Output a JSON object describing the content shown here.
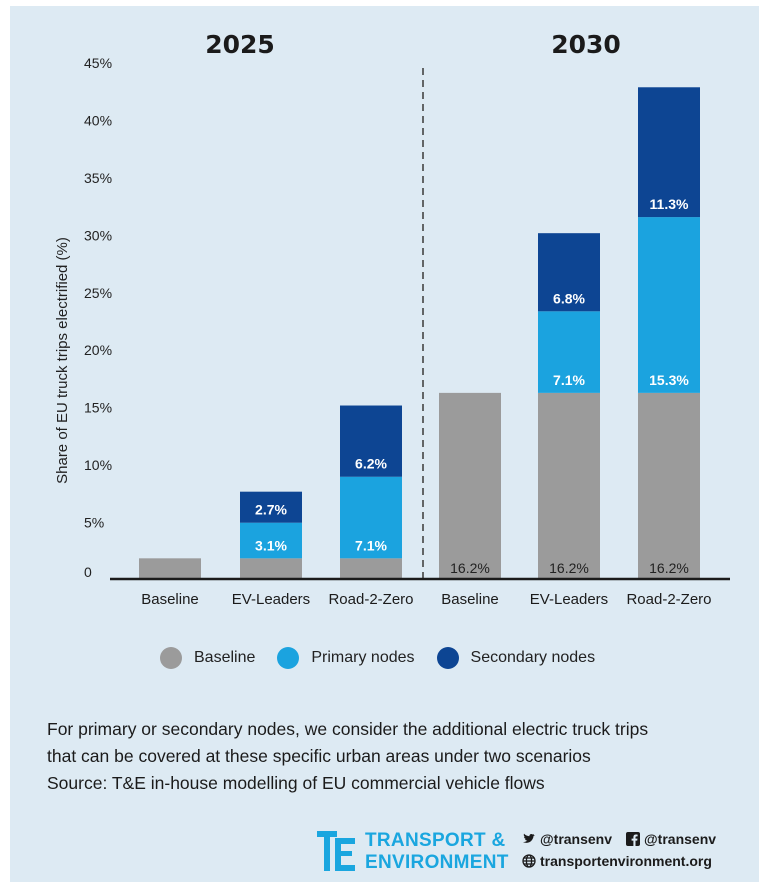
{
  "chart_data": {
    "type": "bar",
    "stacked": true,
    "groups": [
      {
        "title": "2025",
        "categories": [
          "Baseline",
          "EV-Leaders",
          "Road-2-Zero"
        ]
      },
      {
        "title": "2030",
        "categories": [
          "Baseline",
          "EV-Leaders",
          "Road-2-Zero"
        ]
      }
    ],
    "categories": [
      "Baseline",
      "EV-Leaders",
      "Road-2-Zero",
      "Baseline",
      "EV-Leaders",
      "Road-2-Zero"
    ],
    "series": [
      {
        "name": "Baseline",
        "color": "#9b9b9b",
        "values": [
          1.8,
          1.8,
          1.8,
          16.2,
          16.2,
          16.2
        ],
        "labels": [
          "",
          "",
          "",
          "16.2%",
          "16.2%",
          "16.2%"
        ]
      },
      {
        "name": "Primary nodes",
        "color": "#1ba3df",
        "values": [
          0,
          3.1,
          7.1,
          0,
          7.1,
          15.3
        ],
        "labels": [
          "",
          "3.1%",
          "7.1%",
          "",
          "7.1%",
          "15.3%"
        ]
      },
      {
        "name": "Secondary nodes",
        "color": "#0d4593",
        "values": [
          0,
          2.7,
          6.2,
          0,
          6.8,
          11.3
        ],
        "labels": [
          "",
          "2.7%",
          "6.2%",
          "",
          "6.8%",
          "11.3%"
        ]
      }
    ],
    "ylabel": "Share of EU truck trips electrified (%)",
    "xlabel": "",
    "ylim": [
      0,
      45
    ],
    "yticks": [
      0,
      5,
      10,
      15,
      20,
      25,
      30,
      35,
      40,
      45
    ],
    "ytick_labels": [
      "0",
      "5%",
      "10%",
      "15%",
      "20%",
      "25%",
      "30%",
      "35%",
      "40%",
      "45%"
    ],
    "grid": false,
    "legend_position": "bottom"
  },
  "legend": [
    {
      "label": "Baseline",
      "color": "#9b9b9b"
    },
    {
      "label": "Primary nodes",
      "color": "#1ba3df"
    },
    {
      "label": "Secondary nodes",
      "color": "#0d4593"
    }
  ],
  "caption": {
    "line1": "For primary or secondary nodes, we consider the additional electric truck trips",
    "line2": "that can be covered at these specific urban areas under two scenarios",
    "line3": "Source: T&E in-house modelling of EU commercial vehicle flows"
  },
  "logo": {
    "line1": "TRANSPORT &",
    "line2": "ENVIRONMENT",
    "color": "#1aa6df"
  },
  "social": {
    "twitter": "@transenv",
    "facebook": "@transenv",
    "website": "transportenvironment.org"
  }
}
